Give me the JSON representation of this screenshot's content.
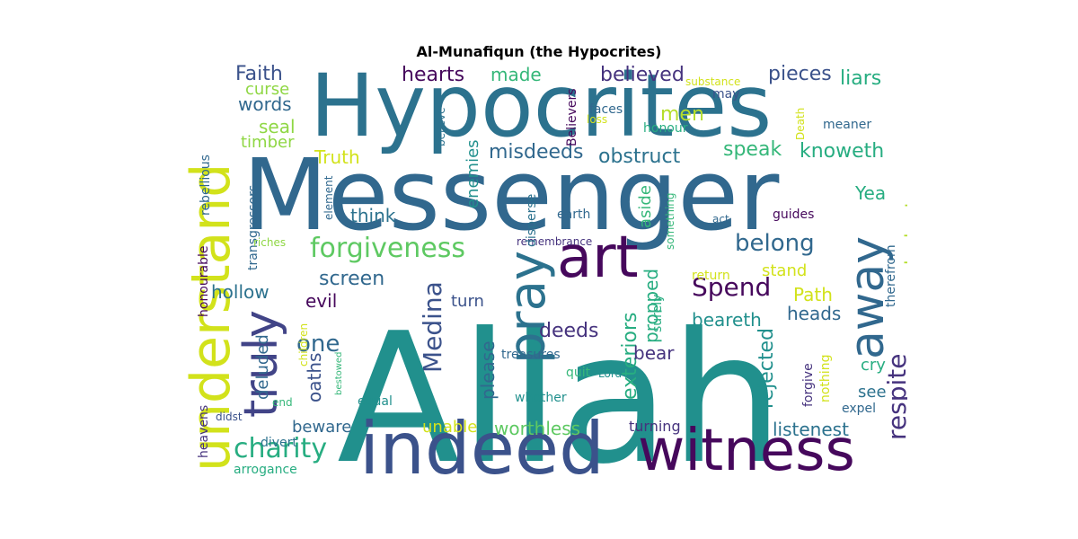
{
  "title": "Al-Munafiqun (the Hypocrites)",
  "palette": {
    "purple": "#46085c",
    "indigo": "#3b528b",
    "blue": "#31688e",
    "teal": "#21908d",
    "green": "#35b779",
    "lime": "#8fd744",
    "yellow": "#d2e21b"
  },
  "words": [
    {
      "t": "Allah",
      "c": "#21908d"
    },
    {
      "t": "Messenger",
      "c": "#31688e"
    },
    {
      "t": "Hypocrites",
      "c": "#2c728e"
    },
    {
      "t": "indeed",
      "c": "#3b528b"
    },
    {
      "t": "witness",
      "c": "#46085c"
    },
    {
      "t": "understand",
      "c": "#d2e21b"
    },
    {
      "t": "art",
      "c": "#46085c"
    },
    {
      "t": "truly",
      "c": "#414487"
    },
    {
      "t": "pray",
      "c": "#2c728e"
    },
    {
      "t": "away",
      "c": "#31688e"
    },
    {
      "t": "forgiveness",
      "c": "#5ec962"
    },
    {
      "t": "charity",
      "c": "#27ad81"
    },
    {
      "t": "belong",
      "c": "#31688e"
    },
    {
      "t": "Medina",
      "c": "#3b528b"
    },
    {
      "t": "respite",
      "c": "#46337e"
    },
    {
      "t": "Spend",
      "c": "#46085c"
    },
    {
      "t": "one",
      "c": "#31688e"
    },
    {
      "t": "misdeeds",
      "c": "#31688e"
    },
    {
      "t": "obstruct",
      "c": "#2c728e"
    },
    {
      "t": "speak",
      "c": "#35b779"
    },
    {
      "t": "knoweth",
      "c": "#27ad81"
    },
    {
      "t": "believed",
      "c": "#46337e"
    },
    {
      "t": "hearts",
      "c": "#46085c"
    },
    {
      "t": "made",
      "c": "#35b779"
    },
    {
      "t": "Faith",
      "c": "#3b528b"
    },
    {
      "t": "curse",
      "c": "#8fd744"
    },
    {
      "t": "words",
      "c": "#31688e"
    },
    {
      "t": "seal",
      "c": "#8fd744"
    },
    {
      "t": "timber",
      "c": "#8fd744"
    },
    {
      "t": "Truth",
      "c": "#d2e21b"
    },
    {
      "t": "liars",
      "c": "#27ad81"
    },
    {
      "t": "pieces",
      "c": "#3b528b"
    },
    {
      "t": "men",
      "c": "#b5de2b"
    },
    {
      "t": "think",
      "c": "#2c728e"
    },
    {
      "t": "Yea",
      "c": "#27ad81"
    },
    {
      "t": "lookest",
      "c": "#b5de2b"
    },
    {
      "t": "screen",
      "c": "#31688e"
    },
    {
      "t": "hollow",
      "c": "#2c728e"
    },
    {
      "t": "evil",
      "c": "#46085c"
    },
    {
      "t": "turn",
      "c": "#3b528b"
    },
    {
      "t": "deeds",
      "c": "#46337e"
    },
    {
      "t": "please",
      "c": "#31688e"
    },
    {
      "t": "exteriors",
      "c": "#27ad81"
    },
    {
      "t": "propped",
      "c": "#27ad81"
    },
    {
      "t": "bear",
      "c": "#46337e"
    },
    {
      "t": "beareth",
      "c": "#21908d"
    },
    {
      "t": "rejected",
      "c": "#21908d"
    },
    {
      "t": "Path",
      "c": "#d2e21b"
    },
    {
      "t": "heads",
      "c": "#31688e"
    },
    {
      "t": "stand",
      "c": "#d2e21b"
    },
    {
      "t": "oaths",
      "c": "#3b528b"
    },
    {
      "t": "deluded",
      "c": "#31688e"
    },
    {
      "t": "beware",
      "c": "#31688e"
    },
    {
      "t": "unable",
      "c": "#d2e21b"
    },
    {
      "t": "worthless",
      "c": "#5ec962"
    },
    {
      "t": "turning",
      "c": "#46337e"
    },
    {
      "t": "listenest",
      "c": "#2c728e"
    },
    {
      "t": "cry",
      "c": "#27ad81"
    },
    {
      "t": "see",
      "c": "#2c728e"
    },
    {
      "t": "divert",
      "c": "#2c728e"
    },
    {
      "t": "arrogance",
      "c": "#27ad81"
    },
    {
      "t": "enemies",
      "c": "#21908d"
    },
    {
      "t": "aside",
      "c": "#35b779"
    },
    {
      "t": "earth",
      "c": "#31688e"
    },
    {
      "t": "remembrance",
      "c": "#46337e"
    },
    {
      "t": "treasures",
      "c": "#31688e"
    },
    {
      "t": "whether",
      "c": "#21908d"
    },
    {
      "t": "equal",
      "c": "#21908d"
    },
    {
      "t": "guides",
      "c": "#46085c"
    },
    {
      "t": "act",
      "c": "#31688e"
    },
    {
      "t": "faces",
      "c": "#31688e"
    },
    {
      "t": "loss",
      "c": "#d2e21b"
    },
    {
      "t": "substance",
      "c": "#d2e21b"
    },
    {
      "t": "may",
      "c": "#3b528b"
    },
    {
      "t": "honour",
      "c": "#27ad81"
    },
    {
      "t": "meaner",
      "c": "#31688e"
    },
    {
      "t": "Death",
      "c": "#d2e21b"
    },
    {
      "t": "Believers",
      "c": "#46085c"
    },
    {
      "t": "believe",
      "c": "#2c728e"
    },
    {
      "t": "element",
      "c": "#31688e"
    },
    {
      "t": "transgressors",
      "c": "#31688e"
    },
    {
      "t": "rebellious",
      "c": "#31688e"
    },
    {
      "t": "honourable",
      "c": "#46085c"
    },
    {
      "t": "riches",
      "c": "#8fd744"
    },
    {
      "t": "disperse",
      "c": "#2c728e"
    },
    {
      "t": "something",
      "c": "#35b779"
    },
    {
      "t": "therefrom",
      "c": "#31688e"
    },
    {
      "t": "know",
      "c": "#46337e"
    },
    {
      "t": "return",
      "c": "#d2e21b"
    },
    {
      "t": "surely",
      "c": "#27ad81"
    },
    {
      "t": "Lord",
      "c": "#21908d"
    },
    {
      "t": "forgive",
      "c": "#46337e"
    },
    {
      "t": "nothing",
      "c": "#d2e21b"
    },
    {
      "t": "expel",
      "c": "#31688e"
    },
    {
      "t": "quit",
      "c": "#35b779"
    },
    {
      "t": "children",
      "c": "#d2e21b"
    },
    {
      "t": "bestowed",
      "c": "#35b779"
    },
    {
      "t": "end",
      "c": "#35b779"
    },
    {
      "t": "didst",
      "c": "#3b528b"
    },
    {
      "t": "heavens",
      "c": "#46337e"
    }
  ]
}
